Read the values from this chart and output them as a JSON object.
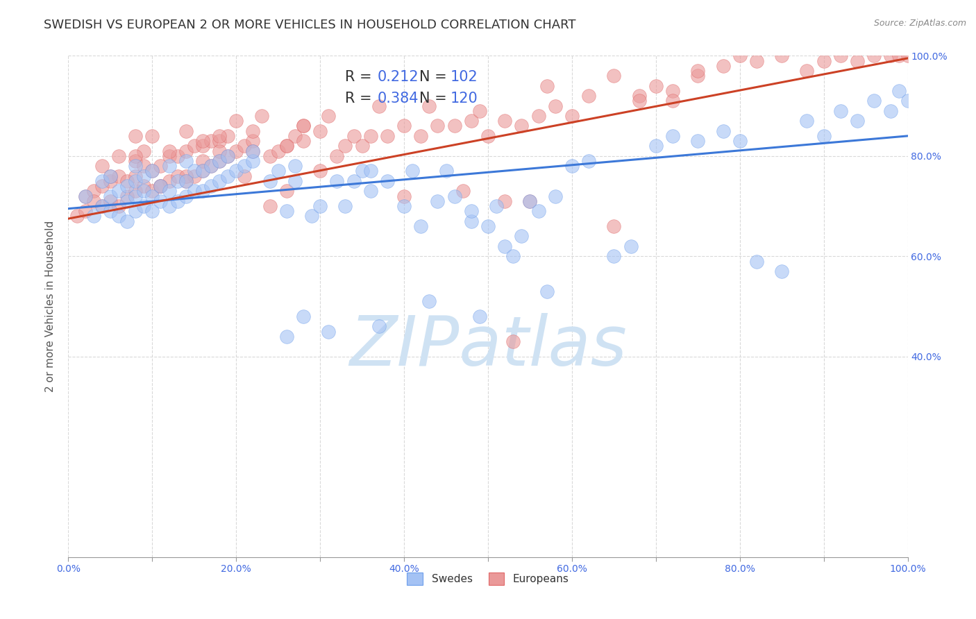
{
  "title": "SWEDISH VS EUROPEAN 2 OR MORE VEHICLES IN HOUSEHOLD CORRELATION CHART",
  "source": "Source: ZipAtlas.com",
  "ylabel": "2 or more Vehicles in Household",
  "xlim": [
    0.0,
    1.0
  ],
  "ylim": [
    0.0,
    1.0
  ],
  "xticks": [
    0.0,
    0.1,
    0.2,
    0.3,
    0.4,
    0.5,
    0.6,
    0.7,
    0.8,
    0.9,
    1.0
  ],
  "yticks": [
    0.4,
    0.6,
    0.8,
    1.0
  ],
  "xticklabels": [
    "0.0%",
    "",
    "20.0%",
    "",
    "40.0%",
    "",
    "60.0%",
    "",
    "80.0%",
    "",
    "100.0%"
  ],
  "right_yticklabels": [
    "40.0%",
    "60.0%",
    "80.0%",
    "100.0%"
  ],
  "blue_color": "#a4c2f4",
  "blue_edge_color": "#6d9eeb",
  "blue_line_color": "#3c78d8",
  "pink_color": "#ea9999",
  "pink_edge_color": "#e06666",
  "pink_line_color": "#cc4125",
  "value_color": "#4169e1",
  "watermark": "ZIPatlas",
  "watermark_color": "#cfe2f3",
  "swedes_label": "Swedes",
  "europeans_label": "Europeans",
  "blue_scatter_x": [
    0.02,
    0.03,
    0.04,
    0.04,
    0.05,
    0.05,
    0.05,
    0.06,
    0.06,
    0.07,
    0.07,
    0.07,
    0.08,
    0.08,
    0.08,
    0.08,
    0.09,
    0.09,
    0.09,
    0.1,
    0.1,
    0.1,
    0.11,
    0.11,
    0.12,
    0.12,
    0.12,
    0.13,
    0.13,
    0.14,
    0.14,
    0.14,
    0.15,
    0.15,
    0.16,
    0.16,
    0.17,
    0.17,
    0.18,
    0.18,
    0.19,
    0.19,
    0.2,
    0.21,
    0.22,
    0.22,
    0.24,
    0.25,
    0.26,
    0.27,
    0.27,
    0.29,
    0.3,
    0.32,
    0.33,
    0.34,
    0.35,
    0.36,
    0.36,
    0.38,
    0.4,
    0.41,
    0.42,
    0.44,
    0.45,
    0.46,
    0.48,
    0.48,
    0.5,
    0.51,
    0.52,
    0.53,
    0.54,
    0.55,
    0.56,
    0.58,
    0.6,
    0.62,
    0.65,
    0.67,
    0.7,
    0.72,
    0.75,
    0.78,
    0.8,
    0.82,
    0.85,
    0.88,
    0.9,
    0.92,
    0.94,
    0.96,
    0.98,
    0.99,
    1.0,
    0.26,
    0.28,
    0.31,
    0.37,
    0.43,
    0.49,
    0.57
  ],
  "blue_scatter_y": [
    0.72,
    0.68,
    0.7,
    0.75,
    0.69,
    0.72,
    0.76,
    0.68,
    0.73,
    0.67,
    0.71,
    0.74,
    0.69,
    0.72,
    0.75,
    0.78,
    0.7,
    0.73,
    0.76,
    0.69,
    0.72,
    0.77,
    0.71,
    0.74,
    0.7,
    0.73,
    0.78,
    0.71,
    0.75,
    0.72,
    0.75,
    0.79,
    0.73,
    0.77,
    0.73,
    0.77,
    0.74,
    0.78,
    0.75,
    0.79,
    0.76,
    0.8,
    0.77,
    0.78,
    0.79,
    0.81,
    0.75,
    0.77,
    0.69,
    0.75,
    0.78,
    0.68,
    0.7,
    0.75,
    0.7,
    0.75,
    0.77,
    0.73,
    0.77,
    0.75,
    0.7,
    0.77,
    0.66,
    0.71,
    0.77,
    0.72,
    0.67,
    0.69,
    0.66,
    0.7,
    0.62,
    0.6,
    0.64,
    0.71,
    0.69,
    0.72,
    0.78,
    0.79,
    0.6,
    0.62,
    0.82,
    0.84,
    0.83,
    0.85,
    0.83,
    0.59,
    0.57,
    0.87,
    0.84,
    0.89,
    0.87,
    0.91,
    0.89,
    0.93,
    0.91,
    0.44,
    0.48,
    0.45,
    0.46,
    0.51,
    0.48,
    0.53
  ],
  "pink_scatter_x": [
    0.01,
    0.02,
    0.02,
    0.03,
    0.04,
    0.04,
    0.05,
    0.05,
    0.06,
    0.06,
    0.07,
    0.07,
    0.08,
    0.08,
    0.08,
    0.09,
    0.09,
    0.1,
    0.1,
    0.11,
    0.11,
    0.12,
    0.12,
    0.13,
    0.13,
    0.14,
    0.14,
    0.15,
    0.15,
    0.16,
    0.16,
    0.17,
    0.17,
    0.18,
    0.18,
    0.19,
    0.19,
    0.2,
    0.21,
    0.22,
    0.22,
    0.24,
    0.25,
    0.26,
    0.27,
    0.28,
    0.3,
    0.32,
    0.33,
    0.34,
    0.35,
    0.36,
    0.38,
    0.4,
    0.42,
    0.44,
    0.46,
    0.48,
    0.5,
    0.52,
    0.54,
    0.56,
    0.58,
    0.6,
    0.62,
    0.65,
    0.68,
    0.7,
    0.72,
    0.75,
    0.78,
    0.8,
    0.82,
    0.85,
    0.88,
    0.9,
    0.92,
    0.94,
    0.96,
    0.98,
    0.99,
    1.0,
    0.03,
    0.04,
    0.05,
    0.06,
    0.08,
    0.09,
    0.1,
    0.12,
    0.14,
    0.16,
    0.18,
    0.2,
    0.23,
    0.26,
    0.28,
    0.31,
    0.37,
    0.43,
    0.49,
    0.57,
    0.47,
    0.68,
    0.55,
    0.65,
    0.75,
    0.72,
    0.52,
    0.4,
    0.24,
    0.53,
    0.3,
    0.26,
    0.21,
    0.08,
    0.14,
    0.11,
    0.16,
    0.22,
    0.28,
    0.18
  ],
  "pink_scatter_y": [
    0.68,
    0.69,
    0.72,
    0.73,
    0.7,
    0.74,
    0.71,
    0.75,
    0.7,
    0.76,
    0.72,
    0.75,
    0.73,
    0.76,
    0.79,
    0.74,
    0.78,
    0.73,
    0.77,
    0.74,
    0.78,
    0.75,
    0.8,
    0.76,
    0.8,
    0.75,
    0.81,
    0.76,
    0.82,
    0.77,
    0.82,
    0.78,
    0.83,
    0.79,
    0.83,
    0.8,
    0.84,
    0.81,
    0.82,
    0.83,
    0.85,
    0.8,
    0.81,
    0.82,
    0.84,
    0.83,
    0.85,
    0.8,
    0.82,
    0.84,
    0.82,
    0.84,
    0.84,
    0.86,
    0.84,
    0.86,
    0.86,
    0.87,
    0.84,
    0.87,
    0.86,
    0.88,
    0.9,
    0.88,
    0.92,
    0.96,
    0.92,
    0.94,
    0.93,
    0.96,
    0.98,
    1.0,
    0.99,
    1.0,
    0.97,
    0.99,
    1.0,
    0.99,
    1.0,
    1.0,
    1.0,
    1.0,
    0.71,
    0.78,
    0.76,
    0.8,
    0.84,
    0.81,
    0.84,
    0.81,
    0.85,
    0.83,
    0.84,
    0.87,
    0.88,
    0.82,
    0.86,
    0.88,
    0.9,
    0.9,
    0.89,
    0.94,
    0.73,
    0.91,
    0.71,
    0.66,
    0.97,
    0.91,
    0.71,
    0.72,
    0.7,
    0.43,
    0.77,
    0.73,
    0.76,
    0.8,
    0.76,
    0.74,
    0.79,
    0.81,
    0.86,
    0.81
  ],
  "blue_line_y_start": 0.695,
  "blue_line_y_end": 0.84,
  "pink_line_y_start": 0.675,
  "pink_line_y_end": 0.995,
  "grid_color": "#d9d9d9",
  "background_color": "#ffffff",
  "title_fontsize": 13,
  "axis_label_fontsize": 11,
  "tick_fontsize": 10,
  "legend_fontsize": 15
}
